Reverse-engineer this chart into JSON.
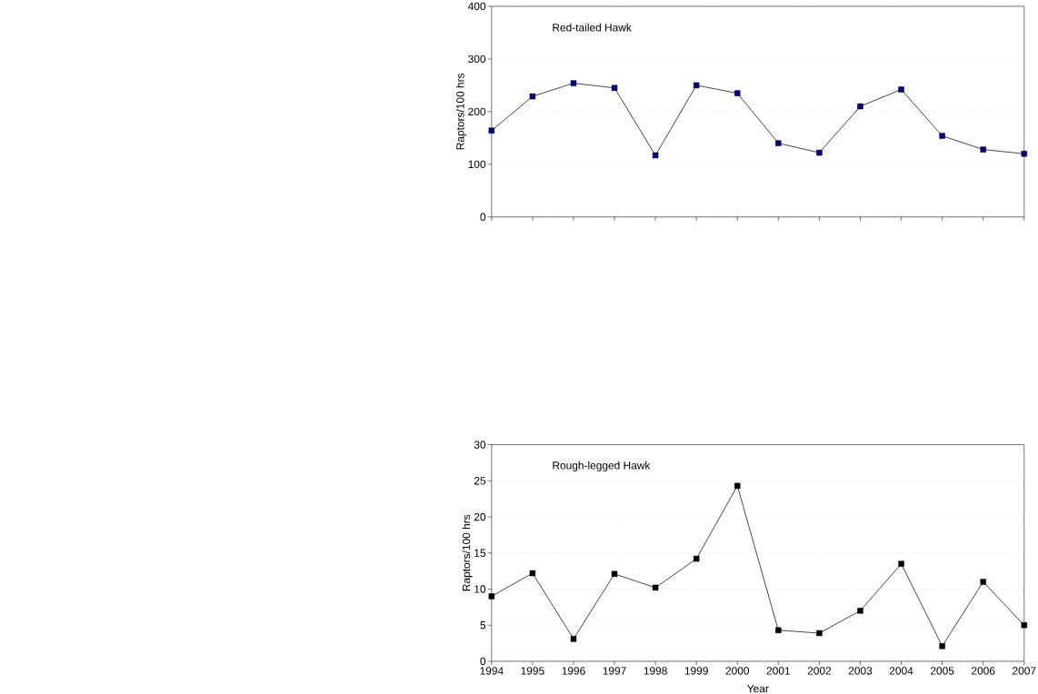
{
  "chart_data": [
    {
      "type": "line",
      "title": "Red-tailed Hawk",
      "ylabel": "Raptors/100 hrs",
      "categories": [
        "1994",
        "1995",
        "1996",
        "1997",
        "1998",
        "1999",
        "2000",
        "2001",
        "2002",
        "2003",
        "2004",
        "2005",
        "2006",
        "2007"
      ],
      "series": [
        {
          "color": "#000080",
          "values": [
            164,
            229,
            254,
            245,
            117,
            250,
            235,
            140,
            122,
            210,
            242,
            154,
            128,
            120
          ]
        }
      ],
      "ylim": [
        0,
        400
      ],
      "yticks": [
        0,
        100,
        200,
        300,
        400
      ],
      "grid": "y",
      "marker": "square",
      "line_style": "solid",
      "tick_labels": "y"
    },
    {
      "type": "line",
      "title": "Rough-legged Hawk",
      "ylabel": "Raptors/100 hrs",
      "xlabel": "Year",
      "categories": [
        "1994",
        "1995",
        "1996",
        "1997",
        "1998",
        "1999",
        "2000",
        "2001",
        "2002",
        "2003",
        "2004",
        "2005",
        "2006",
        "2007"
      ],
      "series": [
        {
          "color": "#000000",
          "values": [
            9.0,
            12.2,
            3.1,
            12.1,
            10.2,
            14.2,
            24.3,
            4.3,
            3.9,
            7.0,
            13.5,
            2.1,
            11.0,
            5.0
          ]
        }
      ],
      "ylim": [
        0,
        30
      ],
      "yticks": [
        0,
        5,
        10,
        15,
        20,
        25,
        30
      ],
      "grid": "y",
      "marker": "square",
      "line_style": "solid"
    }
  ]
}
